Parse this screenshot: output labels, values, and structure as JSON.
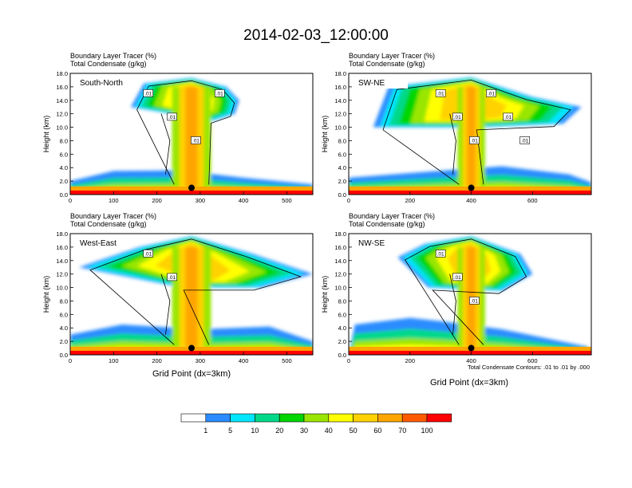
{
  "figure": {
    "title": "2014-02-03_12:00:00",
    "x_axis_title": "Grid Point (dx=3km)",
    "contour_note": "Total Condensate Contours: .01 to .01 by .000"
  },
  "colorbar": {
    "colors": [
      "#ffffff",
      "#2a8cff",
      "#00e6ff",
      "#00d98a",
      "#00d600",
      "#9ae600",
      "#ffff00",
      "#ffd200",
      "#ffa500",
      "#ff5a00",
      "#ff0000"
    ],
    "labels": [
      "1",
      "5",
      "10",
      "20",
      "30",
      "40",
      "50",
      "60",
      "70",
      "100"
    ]
  },
  "chart_data": [
    {
      "type": "heatmap",
      "panel": "South-North",
      "title_line1": "Boundary Layer Tracer   (%)",
      "title_line2": "Total Condensate   (g/kg)",
      "ylabel": "Height (km)",
      "ylim": [
        0,
        18
      ],
      "yticks": [
        "0.0",
        "2.0",
        "4.0",
        "6.0",
        "8.0",
        "10.0",
        "12.0",
        "14.0",
        "16.0",
        "18.0"
      ],
      "xlim": [
        0,
        560
      ],
      "xticks": [
        0,
        100,
        200,
        300,
        400,
        500
      ],
      "contour_labels": [
        ".01",
        ".01",
        ".01",
        ".01"
      ],
      "marker": {
        "x": 280,
        "y": 1.0
      }
    },
    {
      "type": "heatmap",
      "panel": "SW-NE",
      "title_line1": "Boundary Layer Tracer   (%)",
      "title_line2": "Total Condensate   (g/kg)",
      "ylabel": "Height (km)",
      "ylim": [
        0,
        18
      ],
      "yticks": [
        "0.0",
        "2.0",
        "4.0",
        "6.0",
        "8.0",
        "10.0",
        "12.0",
        "14.0",
        "16.0",
        "18.0"
      ],
      "xlim": [
        0,
        792
      ],
      "xticks": [
        0,
        200,
        400,
        600
      ],
      "contour_labels": [
        ".01",
        ".01",
        ".01",
        ".01",
        ".01",
        ".01"
      ],
      "marker": {
        "x": 400,
        "y": 1.0
      }
    },
    {
      "type": "heatmap",
      "panel": "West-East",
      "title_line1": "Boundary Layer Tracer   (%)",
      "title_line2": "Total Condensate   (g/kg)",
      "ylabel": "Height (km)",
      "ylim": [
        0,
        18
      ],
      "yticks": [
        "0.0",
        "2.0",
        "4.0",
        "6.0",
        "8.0",
        "10.0",
        "12.0",
        "14.0",
        "16.0",
        "18.0"
      ],
      "xlim": [
        0,
        560
      ],
      "xticks": [
        0,
        100,
        200,
        300,
        400,
        500
      ],
      "contour_labels": [
        ".01",
        ".01"
      ],
      "marker": {
        "x": 280,
        "y": 1.0
      }
    },
    {
      "type": "heatmap",
      "panel": "NW-SE",
      "title_line1": "Boundary Layer Tracer   (%)",
      "title_line2": "Total Condensate   (g/kg)",
      "ylabel": "Height (km)",
      "ylim": [
        0,
        18
      ],
      "yticks": [
        "0.0",
        "2.0",
        "4.0",
        "6.0",
        "8.0",
        "10.0",
        "12.0",
        "14.0",
        "16.0",
        "18.0"
      ],
      "xlim": [
        0,
        792
      ],
      "xticks": [
        0,
        200,
        400,
        600
      ],
      "contour_labels": [
        ".01",
        ".01",
        ".01"
      ],
      "marker": {
        "x": 400,
        "y": 1.0
      }
    }
  ]
}
